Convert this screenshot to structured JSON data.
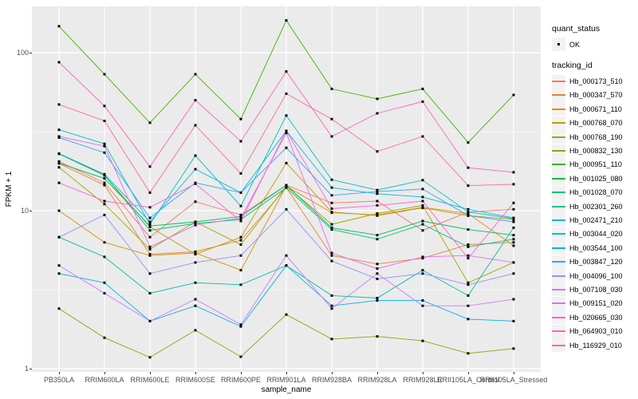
{
  "figure": {
    "y_axis": {
      "title": "FPKM + 1",
      "tick_labels": [
        "100",
        "10",
        "1"
      ],
      "tick_values": [
        100,
        10,
        1
      ],
      "scale": "log10"
    },
    "x_axis": {
      "title": "sample_name"
    },
    "legend": {
      "quant_status_title": "quant_status",
      "quant_status_entries": [
        {
          "label": "OK",
          "glyph": "black-point"
        }
      ],
      "tracking_id_title": "tracking_id"
    },
    "style": {
      "panel_background": "#EBEBEB",
      "gridline_color": "#FFFFFF",
      "axis_text_color": "#4D4D4D",
      "point_color": "#000000",
      "legend_key_background": "#F2F2F2"
    }
  },
  "chart_data": {
    "type": "line",
    "title": "",
    "xlabel": "sample_name",
    "ylabel": "FPKM + 1",
    "y_scale": "log10",
    "ylim": [
      1,
      200
    ],
    "y_major_gridlines": [
      1,
      10,
      100
    ],
    "y_minor_gridlines": [
      3.162,
      31.62
    ],
    "grid": true,
    "legend_position": "right",
    "point_label": "OK",
    "categories": [
      "PB350LA",
      "RRIM600LA",
      "RRIM600LE",
      "RRIM600SE",
      "RRIM600PE",
      "RRIM901LA",
      "RRIM928BA",
      "RRIM928LA",
      "RRIM928LE",
      "RRII105LA_Control",
      "RRII105LA_Stressed"
    ],
    "series": [
      {
        "name": "Hb_000173_510",
        "color": "#F8766D",
        "values": [
          20.5,
          15,
          6.8,
          11.4,
          9.4,
          14.5,
          11.2,
          11.5,
          7.5,
          9.8,
          10.2
        ]
      },
      {
        "name": "Hb_000347_570",
        "color": "#EA8331",
        "values": [
          19.9,
          14.5,
          5.3,
          5.5,
          6.5,
          14.0,
          5.2,
          4.6,
          5.0,
          6.1,
          6.3
        ]
      },
      {
        "name": "Hb_000671_110",
        "color": "#D89000",
        "values": [
          10,
          6.3,
          5.2,
          5.4,
          4.2,
          14.3,
          9.7,
          9.4,
          10.5,
          9.6,
          6.0
        ]
      },
      {
        "name": "Hb_000768_070",
        "color": "#C09B00",
        "values": [
          22.9,
          16.7,
          7.9,
          5.3,
          6.8,
          20,
          9.8,
          9.3,
          10.4,
          9.3,
          8.8
        ]
      },
      {
        "name": "Hb_000768_190",
        "color": "#A3A500",
        "values": [
          18.8,
          11,
          5.7,
          8.5,
          6.1,
          14.3,
          8.2,
          9.6,
          10.8,
          3.5,
          4.7
        ]
      },
      {
        "name": "Hb_000832_130",
        "color": "#7CAE00",
        "values": [
          2.4,
          1.57,
          1.18,
          1.75,
          1.19,
          2.2,
          1.54,
          1.6,
          1.5,
          1.25,
          1.34
        ]
      },
      {
        "name": "Hb_000951_110",
        "color": "#39B600",
        "values": [
          147,
          73,
          36,
          73,
          38,
          160,
          59,
          51,
          59,
          27,
          54
        ]
      },
      {
        "name": "Hb_001025_080",
        "color": "#00BB4E",
        "values": [
          20,
          16,
          8.0,
          8.5,
          9.2,
          14.5,
          7.8,
          7.0,
          8.6,
          7.6,
          7.0
        ]
      },
      {
        "name": "Hb_001028_070",
        "color": "#00BF7D",
        "values": [
          22.9,
          16.8,
          7.5,
          8.3,
          8.8,
          14.0,
          7.6,
          6.6,
          8.2,
          5.9,
          6.6
        ]
      },
      {
        "name": "Hb_002301_260",
        "color": "#00C1A3",
        "values": [
          6.8,
          5.1,
          3.0,
          3.5,
          3.4,
          4.5,
          2.9,
          2.8,
          4.2,
          2.9,
          7.8
        ]
      },
      {
        "name": "Hb_002471_210",
        "color": "#00BFC4",
        "values": [
          32.5,
          26.5,
          8.2,
          22.3,
          10.7,
          40,
          15.7,
          13.5,
          15.6,
          9.8,
          8.9
        ]
      },
      {
        "name": "Hb_003044_020",
        "color": "#00BAE0",
        "values": [
          23,
          17,
          8.5,
          18.3,
          13,
          32,
          14,
          12.8,
          12.2,
          10.2,
          9.0
        ]
      },
      {
        "name": "Hb_003544_100",
        "color": "#00B0F6",
        "values": [
          4.0,
          3.5,
          2.0,
          2.5,
          1.85,
          4.5,
          2.5,
          2.7,
          2.7,
          2.06,
          2.0
        ]
      },
      {
        "name": "Hb_003847_120",
        "color": "#35A2FF",
        "values": [
          29,
          23.3,
          9.0,
          15,
          13,
          25,
          12.5,
          13.2,
          13.7,
          9.3,
          8.5
        ]
      },
      {
        "name": "Hb_004096_100",
        "color": "#9590FF",
        "values": [
          6.8,
          9.4,
          4.0,
          4.7,
          5.2,
          10.2,
          4.8,
          3.7,
          4.0,
          3.4,
          4.0
        ]
      },
      {
        "name": "Hb_007108_030",
        "color": "#C77CFF",
        "values": [
          4.5,
          3.0,
          2.0,
          2.75,
          1.9,
          5.2,
          2.4,
          4.0,
          2.5,
          2.5,
          2.75
        ]
      },
      {
        "name": "Hb_009151_020",
        "color": "#E76BF3",
        "values": [
          29.5,
          25.6,
          5.9,
          8.1,
          9.0,
          31,
          5.4,
          4.3,
          5.1,
          5.2,
          4.7
        ]
      },
      {
        "name": "Hb_020665_030",
        "color": "#FA62DB",
        "values": [
          15,
          11.5,
          10.5,
          14.8,
          8.6,
          32,
          10.3,
          10.8,
          11.5,
          5.0,
          11.2
        ]
      },
      {
        "name": "Hb_064903_010",
        "color": "#FF62BC",
        "values": [
          87,
          46,
          19,
          50,
          27.5,
          76,
          29.5,
          41.3,
          49,
          18.7,
          17.5
        ]
      },
      {
        "name": "Hb_116929_010",
        "color": "#FF6A98",
        "values": [
          47,
          37,
          13,
          34.7,
          17.2,
          55,
          38,
          23.7,
          29.5,
          14.4,
          14.7
        ]
      }
    ]
  }
}
